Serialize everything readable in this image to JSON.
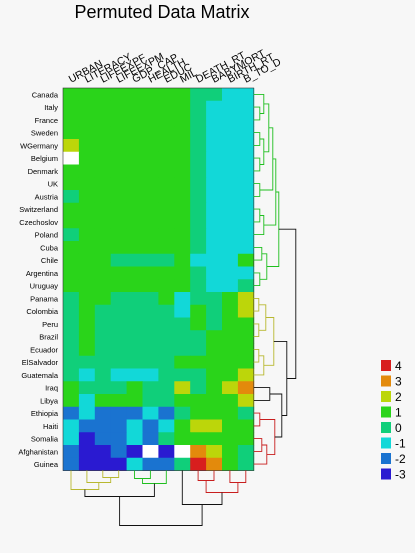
{
  "chart_data": {
    "type": "heatmap",
    "title": "Permuted Data Matrix",
    "columns": [
      "URBAN",
      "LITERACY",
      "LIFEEXPF",
      "LIFEEXPM",
      "GDP_CAP",
      "HEALTH",
      "EDUC",
      "MIL",
      "DEATH_RT",
      "BABYMORT",
      "BIRTH_RT",
      "B_TO_D"
    ],
    "rows": [
      "Canada",
      "Italy",
      "France",
      "Sweden",
      "WGermany",
      "Belgium",
      "Denmark",
      "UK",
      "Austria",
      "Switzerland",
      "Czechoslov",
      "Poland",
      "Cuba",
      "Chile",
      "Argentina",
      "Uruguay",
      "Panama",
      "Colombia",
      "Peru",
      "Brazil",
      "Ecuador",
      "ElSalvador",
      "Guatemala",
      "Iraq",
      "Libya",
      "Ethiopia",
      "Haiti",
      "Somalia",
      "Afghanistan",
      "Guinea"
    ],
    "values": [
      [
        1,
        1,
        1,
        1,
        1,
        1,
        1,
        1,
        0,
        0,
        -1,
        -1
      ],
      [
        1,
        1,
        1,
        1,
        1,
        1,
        1,
        1,
        0,
        -1,
        -1,
        -1
      ],
      [
        1,
        1,
        1,
        1,
        1,
        1,
        1,
        1,
        0,
        -1,
        -1,
        -1
      ],
      [
        1,
        1,
        1,
        1,
        1,
        1,
        1,
        1,
        0,
        -1,
        -1,
        -1
      ],
      [
        2,
        1,
        1,
        1,
        1,
        1,
        1,
        1,
        0,
        -1,
        -1,
        -1
      ],
      [
        null,
        1,
        1,
        1,
        1,
        1,
        1,
        1,
        0,
        -1,
        -1,
        -1
      ],
      [
        1,
        1,
        1,
        1,
        1,
        1,
        1,
        1,
        0,
        -1,
        -1,
        -1
      ],
      [
        1,
        1,
        1,
        1,
        1,
        1,
        1,
        1,
        0,
        -1,
        -1,
        -1
      ],
      [
        0,
        1,
        1,
        1,
        1,
        1,
        1,
        1,
        0,
        -1,
        -1,
        -1
      ],
      [
        1,
        1,
        1,
        1,
        1,
        1,
        1,
        1,
        0,
        -1,
        -1,
        -1
      ],
      [
        1,
        1,
        1,
        1,
        1,
        1,
        1,
        1,
        0,
        -1,
        -1,
        -1
      ],
      [
        0,
        1,
        1,
        1,
        1,
        1,
        1,
        1,
        0,
        -1,
        -1,
        -1
      ],
      [
        1,
        1,
        1,
        1,
        1,
        1,
        1,
        1,
        0,
        -1,
        -1,
        -1
      ],
      [
        1,
        1,
        1,
        0,
        0,
        0,
        0,
        1,
        -1,
        -1,
        -1,
        1
      ],
      [
        1,
        1,
        1,
        1,
        1,
        1,
        1,
        1,
        0,
        -1,
        -1,
        -1
      ],
      [
        1,
        1,
        1,
        1,
        1,
        1,
        1,
        1,
        0,
        -1,
        -1,
        0
      ],
      [
        0,
        1,
        1,
        0,
        0,
        0,
        1,
        -1,
        0,
        0,
        1,
        2
      ],
      [
        0,
        1,
        0,
        0,
        0,
        0,
        0,
        -1,
        1,
        0,
        1,
        2
      ],
      [
        0,
        1,
        0,
        0,
        0,
        0,
        0,
        0,
        1,
        0,
        1,
        1
      ],
      [
        0,
        1,
        0,
        0,
        0,
        0,
        0,
        0,
        0,
        1,
        1,
        1
      ],
      [
        0,
        1,
        0,
        0,
        0,
        0,
        0,
        0,
        0,
        1,
        1,
        1
      ],
      [
        0,
        0,
        0,
        0,
        0,
        0,
        0,
        1,
        1,
        1,
        1,
        1
      ],
      [
        0,
        -1,
        0,
        -1,
        -1,
        -1,
        0,
        0,
        0,
        1,
        1,
        2
      ],
      [
        1,
        0,
        0,
        0,
        1,
        0,
        0,
        2,
        0,
        1,
        2,
        3
      ],
      [
        1,
        -1,
        1,
        1,
        1,
        0,
        0,
        1,
        1,
        1,
        1,
        2
      ],
      [
        -2,
        -1,
        -2,
        -2,
        -2,
        -1,
        -2,
        0,
        1,
        1,
        1,
        0
      ],
      [
        -1,
        -2,
        -2,
        -2,
        -1,
        -2,
        -1,
        1,
        2,
        2,
        1,
        1
      ],
      [
        -1,
        -3,
        -2,
        -2,
        -1,
        -2,
        0,
        1,
        1,
        1,
        1,
        1
      ],
      [
        -2,
        -3,
        -3,
        -2,
        -3,
        null,
        -3,
        null,
        3,
        2,
        1,
        0
      ],
      [
        -2,
        -3,
        -3,
        -3,
        -1,
        -2,
        -2,
        0,
        4,
        3,
        1,
        0
      ]
    ],
    "legend": {
      "levels": [
        "4",
        "3",
        "2",
        "1",
        "0",
        "-1",
        "-2",
        "-3"
      ],
      "colors": [
        "#d81e1e",
        "#e38a0c",
        "#bcd60a",
        "#2ad41a",
        "#10cf7a",
        "#12d8d8",
        "#1a73d0",
        "#2a1ad1"
      ],
      "placement": "right"
    }
  }
}
